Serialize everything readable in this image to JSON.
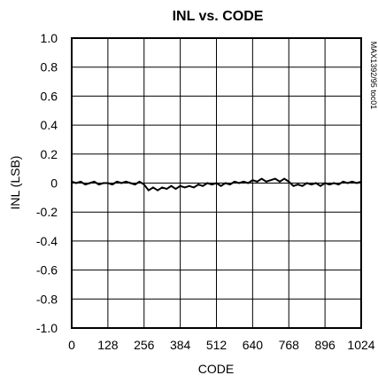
{
  "chart_data": {
    "type": "line",
    "title": "INL vs. CODE",
    "xlabel": "CODE",
    "ylabel": "INL (LSB)",
    "side_note": "MAX1392/95 toc01",
    "xlim": [
      0,
      1024
    ],
    "ylim": [
      -1.0,
      1.0
    ],
    "x_ticks": [
      0,
      128,
      256,
      384,
      512,
      640,
      768,
      896,
      1024
    ],
    "x_tick_labels": [
      "0",
      "128",
      "256",
      "384",
      "512",
      "640",
      "768",
      "896",
      "1024"
    ],
    "y_ticks": [
      1.0,
      0.8,
      0.6,
      0.4,
      0.2,
      0,
      -0.2,
      -0.4,
      -0.6,
      -0.8,
      -1.0
    ],
    "y_tick_labels": [
      "1.0",
      "0.8",
      "0.6",
      "0.4",
      "0.2",
      "0",
      "-0.2",
      "-0.4",
      "-0.6",
      "-0.8",
      "-1.0"
    ],
    "grid": true,
    "legend": "none",
    "line_color": "#000000",
    "series": [
      {
        "x": [
          0,
          16,
          32,
          48,
          64,
          80,
          96,
          112,
          128,
          144,
          160,
          176,
          192,
          208,
          224,
          240,
          256,
          272,
          288,
          304,
          320,
          336,
          352,
          368,
          384,
          400,
          416,
          432,
          448,
          464,
          480,
          496,
          512,
          528,
          544,
          560,
          576,
          592,
          608,
          624,
          640,
          656,
          672,
          688,
          704,
          720,
          736,
          752,
          768,
          784,
          800,
          816,
          832,
          848,
          864,
          880,
          896,
          912,
          928,
          944,
          960,
          976,
          992,
          1008,
          1024
        ],
        "y": [
          0.01,
          0.0,
          0.01,
          -0.01,
          0.0,
          0.01,
          -0.01,
          0.0,
          0.0,
          -0.01,
          0.01,
          0.0,
          0.01,
          0.0,
          -0.01,
          0.01,
          -0.01,
          -0.05,
          -0.03,
          -0.05,
          -0.03,
          -0.04,
          -0.02,
          -0.04,
          -0.02,
          -0.03,
          -0.02,
          -0.03,
          -0.01,
          -0.02,
          0.0,
          -0.01,
          0.0,
          -0.02,
          0.0,
          -0.01,
          0.01,
          0.0,
          0.01,
          0.0,
          0.02,
          0.01,
          0.03,
          0.01,
          0.02,
          0.03,
          0.01,
          0.03,
          0.01,
          -0.02,
          -0.01,
          -0.02,
          0.0,
          -0.01,
          0.0,
          -0.02,
          0.0,
          -0.01,
          0.0,
          -0.01,
          0.01,
          0.0,
          0.01,
          0.0,
          0.01
        ]
      }
    ]
  }
}
